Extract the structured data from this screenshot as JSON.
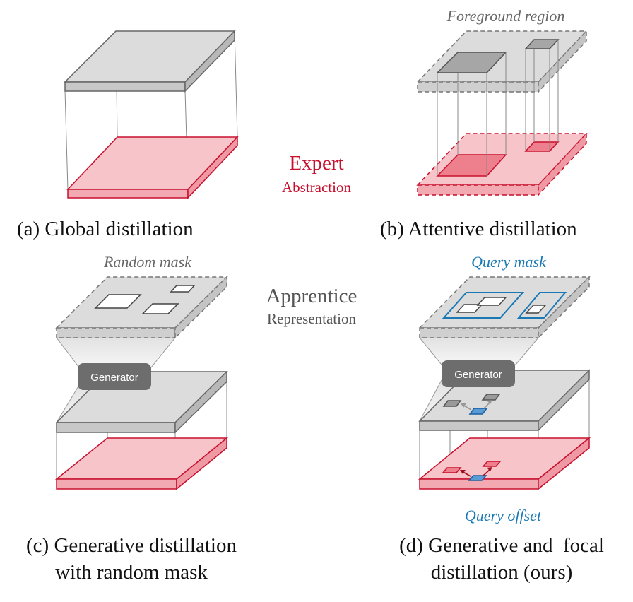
{
  "panels": {
    "a": {
      "caption": "(a) Global distillation"
    },
    "b": {
      "caption": "(b) Attentive distillation",
      "top_label": "Foreground region"
    },
    "c": {
      "caption_line1": "(c) Generative distillation",
      "caption_line2": "with random mask",
      "top_label": "Random mask",
      "generator": "Generator"
    },
    "d": {
      "caption_line1": "(d) Generative and  focal",
      "caption_line2": "distillation (ours)",
      "top_label": "Query mask",
      "bottom_label": "Query offset",
      "generator": "Generator"
    }
  },
  "legend": {
    "expert": "Expert",
    "abstraction": "Abstraction",
    "apprentice": "Apprentice",
    "representation": "Representation"
  },
  "colors": {
    "expert_red": "#c8102e",
    "apprentice_gray": "#555555",
    "query_blue": "#1a78b4",
    "slab_gray": "#d9d9d9",
    "slab_pink": "#f7c4c9"
  }
}
